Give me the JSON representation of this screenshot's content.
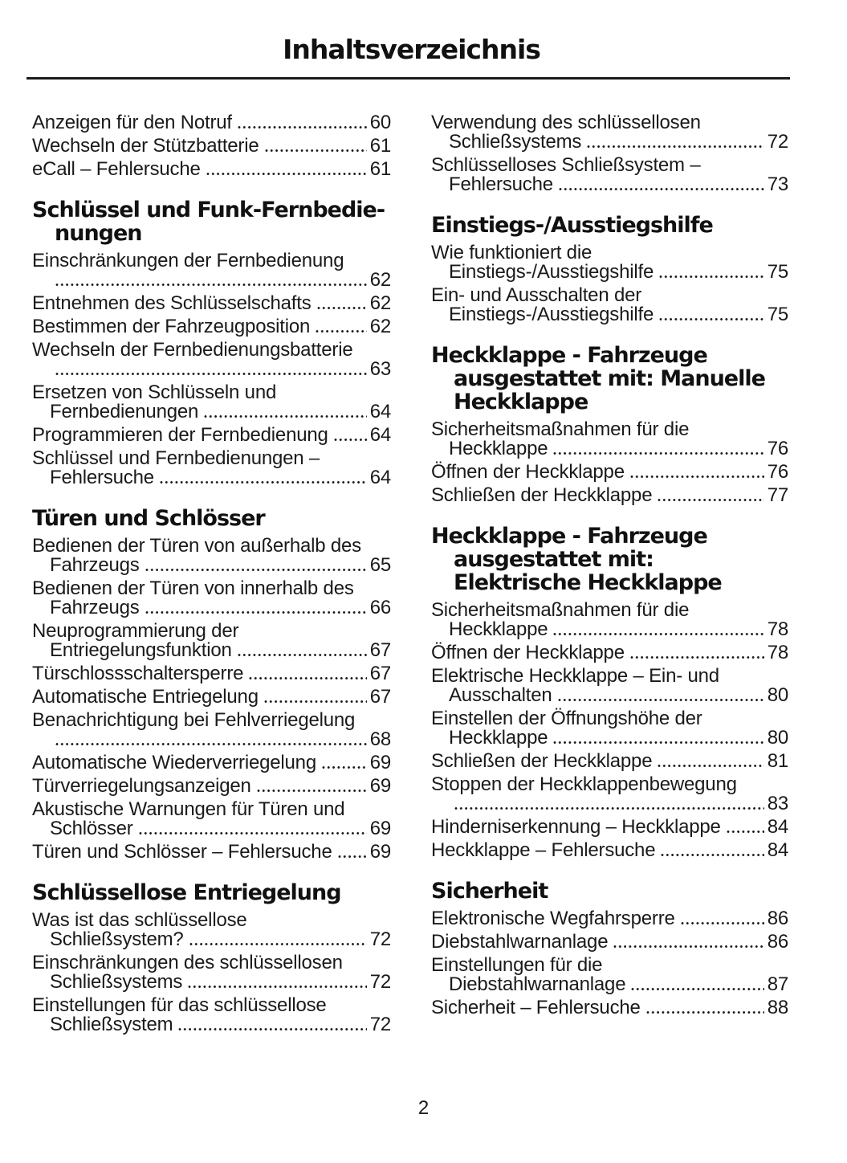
{
  "title": "Inhaltsverzeichnis",
  "footer": {
    "page_number": "2"
  },
  "colors": {
    "background": "#ffffff",
    "text": "#1a1a1a",
    "heading": "#111111",
    "rule": "#1c1c1c"
  },
  "columns": [
    {
      "blocks": [
        {
          "heading": null,
          "entries": [
            {
              "lines": [
                "Anzeigen für den Notruf"
              ],
              "page": "60"
            },
            {
              "lines": [
                "Wechseln der Stützbatterie"
              ],
              "page": "61"
            },
            {
              "lines": [
                "eCall – Fehlersuche"
              ],
              "page": "61"
            }
          ]
        },
        {
          "heading": {
            "lines": [
              "Schlüssel und Funk-Fernbedie-",
              "nungen"
            ]
          },
          "entries": [
            {
              "lines": [
                "Einschränkungen der Fernbedienung",
                ""
              ],
              "page": "62"
            },
            {
              "lines": [
                "Entnehmen des Schlüsselschafts"
              ],
              "page": "62"
            },
            {
              "lines": [
                "Bestimmen der Fahrzeugposition"
              ],
              "page": "62"
            },
            {
              "lines": [
                "Wechseln der Fernbedienungsbatterie",
                ""
              ],
              "page": "63"
            },
            {
              "lines": [
                "Ersetzen von Schlüsseln und",
                "Fernbedienungen"
              ],
              "page": "64"
            },
            {
              "lines": [
                "Programmieren der Fernbedienung"
              ],
              "page": "64"
            },
            {
              "lines": [
                "Schlüssel und Fernbedienungen –",
                "Fehlersuche"
              ],
              "page": "64"
            }
          ]
        },
        {
          "heading": {
            "lines": [
              "Türen und Schlösser"
            ]
          },
          "entries": [
            {
              "lines": [
                "Bedienen der Türen von außerhalb des",
                "Fahrzeugs"
              ],
              "page": "65"
            },
            {
              "lines": [
                "Bedienen der Türen von innerhalb des",
                "Fahrzeugs"
              ],
              "page": "66"
            },
            {
              "lines": [
                "Neuprogrammierung der",
                "Entriegelungsfunktion"
              ],
              "page": "67"
            },
            {
              "lines": [
                "Türschlossschaltersperre"
              ],
              "page": "67"
            },
            {
              "lines": [
                "Automatische Entriegelung"
              ],
              "page": "67"
            },
            {
              "lines": [
                "Benachrichtigung bei Fehlverriegelung",
                ""
              ],
              "page": "68"
            },
            {
              "lines": [
                "Automatische Wiederverriegelung"
              ],
              "page": "69"
            },
            {
              "lines": [
                "Türverriegelungsanzeigen"
              ],
              "page": "69"
            },
            {
              "lines": [
                "Akustische Warnungen für Türen und",
                "Schlösser"
              ],
              "page": "69"
            },
            {
              "lines": [
                "Türen und Schlösser – Fehlersuche"
              ],
              "page": "69"
            }
          ]
        },
        {
          "heading": {
            "lines": [
              "Schlüssellose Entriegelung"
            ]
          },
          "entries": [
            {
              "lines": [
                "Was ist das schlüssellose",
                "Schließsystem?"
              ],
              "page": "72"
            },
            {
              "lines": [
                "Einschränkungen des schlüssellosen",
                "Schließsystems"
              ],
              "page": "72"
            },
            {
              "lines": [
                "Einstellungen für das schlüssellose",
                "Schließsystem"
              ],
              "page": "72"
            }
          ]
        }
      ]
    },
    {
      "blocks": [
        {
          "heading": null,
          "entries": [
            {
              "lines": [
                "Verwendung des schlüssellosen",
                "Schließsystems"
              ],
              "page": "72"
            },
            {
              "lines": [
                "Schlüsselloses Schließsystem –",
                "Fehlersuche"
              ],
              "page": "73"
            }
          ]
        },
        {
          "heading": {
            "lines": [
              "Einstiegs-/Ausstiegshilfe"
            ]
          },
          "entries": [
            {
              "lines": [
                "Wie funktioniert die",
                "Einstiegs-/Ausstiegshilfe"
              ],
              "page": "75"
            },
            {
              "lines": [
                "Ein- und Ausschalten der",
                "Einstiegs-/Ausstiegshilfe"
              ],
              "page": "75"
            }
          ]
        },
        {
          "heading": {
            "lines": [
              "Heckklappe - Fahrzeuge",
              "ausgestattet mit: Manuelle",
              "Heckklappe"
            ]
          },
          "entries": [
            {
              "lines": [
                "Sicherheitsmaßnahmen für die",
                "Heckklappe"
              ],
              "page": "76"
            },
            {
              "lines": [
                "Öffnen der Heckklappe"
              ],
              "page": "76"
            },
            {
              "lines": [
                "Schließen der Heckklappe"
              ],
              "page": "77"
            }
          ]
        },
        {
          "heading": {
            "lines": [
              "Heckklappe - Fahrzeuge",
              "ausgestattet mit:",
              "Elektrische Heckklappe"
            ]
          },
          "entries": [
            {
              "lines": [
                "Sicherheitsmaßnahmen für die",
                "Heckklappe"
              ],
              "page": "78"
            },
            {
              "lines": [
                "Öffnen der Heckklappe"
              ],
              "page": "78"
            },
            {
              "lines": [
                "Elektrische Heckklappe – Ein- und",
                "Ausschalten"
              ],
              "page": "80"
            },
            {
              "lines": [
                "Einstellen der Öffnungshöhe der",
                "Heckklappe"
              ],
              "page": "80"
            },
            {
              "lines": [
                "Schließen der Heckklappe"
              ],
              "page": "81"
            },
            {
              "lines": [
                "Stoppen der Heckklappenbewegung",
                ""
              ],
              "page": "83"
            },
            {
              "lines": [
                "Hinderniserkennung – Heckklappe"
              ],
              "page": "84"
            },
            {
              "lines": [
                "Heckklappe – Fehlersuche"
              ],
              "page": "84"
            }
          ]
        },
        {
          "heading": {
            "lines": [
              "Sicherheit"
            ]
          },
          "entries": [
            {
              "lines": [
                "Elektronische Wegfahrsperre"
              ],
              "page": "86"
            },
            {
              "lines": [
                "Diebstahlwarnanlage"
              ],
              "page": "86"
            },
            {
              "lines": [
                "Einstellungen für die",
                "Diebstahlwarnanlage"
              ],
              "page": "87"
            },
            {
              "lines": [
                "Sicherheit – Fehlersuche"
              ],
              "page": "88"
            }
          ]
        }
      ]
    }
  ]
}
